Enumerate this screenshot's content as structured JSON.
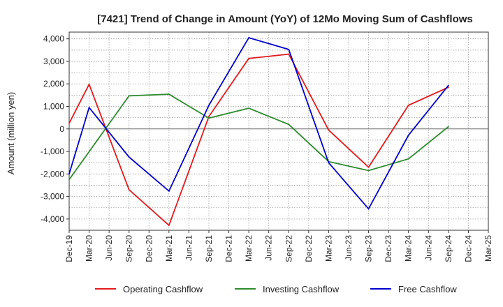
{
  "chart_data": {
    "type": "line",
    "title": "[7421]  Trend of Change in Amount (YoY) of 12Mo Moving Sum of Cashflows",
    "xlabel": "",
    "ylabel": "Amount (million yen)",
    "ylim": [
      -4500,
      4300
    ],
    "yticks": [
      4000,
      3000,
      2000,
      1000,
      0,
      -1000,
      -2000,
      -3000,
      -4000
    ],
    "ytick_labels": [
      "4,000",
      "3,000",
      "2,000",
      "1,000",
      "0",
      "-1,000",
      "-2,000",
      "-3,000",
      "-4,000"
    ],
    "categories": [
      "Dec-19",
      "Mar-20",
      "Jun-20",
      "Sep-20",
      "Dec-20",
      "Mar-21",
      "Jun-21",
      "Sep-21",
      "Dec-21",
      "Mar-22",
      "Jun-22",
      "Sep-22",
      "Dec-22",
      "Mar-23",
      "Jun-23",
      "Sep-23",
      "Dec-23",
      "Mar-24",
      "Jun-24",
      "Sep-24",
      "Dec-24",
      "Mar-25"
    ],
    "grid": true,
    "legend_position": "bottom",
    "series": [
      {
        "name": "Operating Cashflow",
        "color": "#e31a1c",
        "points": [
          [
            0,
            250
          ],
          [
            1,
            1980
          ],
          [
            3,
            -2700
          ],
          [
            5,
            -4280
          ],
          [
            7,
            550
          ],
          [
            9,
            3130
          ],
          [
            11,
            3320
          ],
          [
            13,
            -50
          ],
          [
            15,
            -1700
          ],
          [
            17,
            1050
          ],
          [
            19,
            1850
          ]
        ]
      },
      {
        "name": "Investing Cashflow",
        "color": "#2e8b2e",
        "points": [
          [
            0,
            -2250
          ],
          [
            3,
            1470
          ],
          [
            5,
            1540
          ],
          [
            7,
            480
          ],
          [
            9,
            920
          ],
          [
            11,
            200
          ],
          [
            13,
            -1450
          ],
          [
            15,
            -1850
          ],
          [
            17,
            -1330
          ],
          [
            19,
            100
          ]
        ]
      },
      {
        "name": "Free Cashflow",
        "color": "#0000cc",
        "points": [
          [
            0,
            -2000
          ],
          [
            1,
            950
          ],
          [
            3,
            -1250
          ],
          [
            5,
            -2760
          ],
          [
            7,
            1050
          ],
          [
            9,
            4050
          ],
          [
            11,
            3530
          ],
          [
            13,
            -1500
          ],
          [
            15,
            -3550
          ],
          [
            17,
            -280
          ],
          [
            19,
            1930
          ]
        ]
      }
    ]
  }
}
